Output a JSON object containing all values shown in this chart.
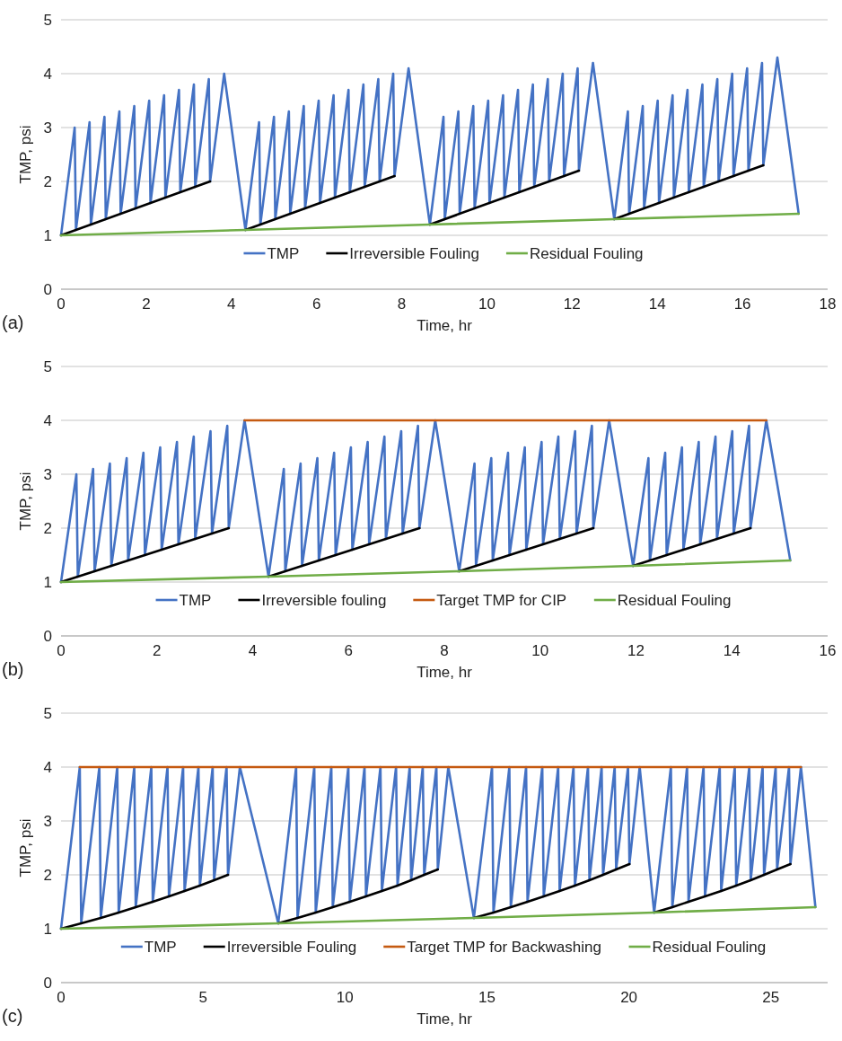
{
  "chart_data": [
    {
      "type": "line",
      "xlabel": "Time, hr",
      "ylabel": "TMP, psi",
      "annotations": [
        "(a)"
      ],
      "xlim": [
        0,
        18
      ],
      "xticks": [
        0,
        2,
        4,
        6,
        8,
        10,
        12,
        14,
        16,
        18
      ],
      "ylim": [
        0,
        5
      ],
      "yticks": [
        0,
        1,
        2,
        3,
        4,
        5
      ],
      "grid": "y",
      "legend": "bottom",
      "marker": "none",
      "line_style": "solid",
      "series": [
        {
          "name": "TMP",
          "color": "#4472c4",
          "x": [
            0,
            0.32,
            0.35,
            0.67,
            0.7,
            1.02,
            1.05,
            1.37,
            1.4,
            1.72,
            1.75,
            2.07,
            2.1,
            2.42,
            2.45,
            2.77,
            2.8,
            3.12,
            3.15,
            3.47,
            3.5,
            3.83,
            4.33,
            4.65,
            4.68,
            5.0,
            5.03,
            5.35,
            5.38,
            5.7,
            5.73,
            6.05,
            6.08,
            6.4,
            6.43,
            6.75,
            6.78,
            7.1,
            7.13,
            7.45,
            7.48,
            7.8,
            7.83,
            8.16,
            8.66,
            8.98,
            9.01,
            9.33,
            9.36,
            9.68,
            9.71,
            10.03,
            10.06,
            10.38,
            10.41,
            10.73,
            10.76,
            11.08,
            11.11,
            11.43,
            11.46,
            11.78,
            11.81,
            12.13,
            12.16,
            12.49,
            12.99,
            13.31,
            13.34,
            13.66,
            13.69,
            14.01,
            14.04,
            14.36,
            14.39,
            14.71,
            14.74,
            15.06,
            15.09,
            15.41,
            15.44,
            15.76,
            15.79,
            16.11,
            16.14,
            16.46,
            16.49,
            16.82,
            17.32
          ],
          "values": [
            1,
            3.0,
            1.1,
            3.1,
            1.2,
            3.2,
            1.3,
            3.3,
            1.4,
            3.4,
            1.5,
            3.5,
            1.6,
            3.6,
            1.7,
            3.7,
            1.8,
            3.8,
            1.9,
            3.9,
            2.0,
            4.0,
            1.1,
            3.1,
            1.2,
            3.2,
            1.3,
            3.3,
            1.4,
            3.4,
            1.5,
            3.5,
            1.6,
            3.6,
            1.7,
            3.7,
            1.8,
            3.8,
            1.9,
            3.9,
            2.0,
            4.0,
            2.1,
            4.1,
            1.2,
            3.2,
            1.3,
            3.3,
            1.4,
            3.4,
            1.5,
            3.5,
            1.6,
            3.6,
            1.7,
            3.7,
            1.8,
            3.8,
            1.9,
            3.9,
            2.0,
            4.0,
            2.1,
            4.1,
            2.2,
            4.2,
            1.3,
            3.3,
            1.4,
            3.4,
            1.5,
            3.5,
            1.6,
            3.6,
            1.7,
            3.7,
            1.8,
            3.8,
            1.9,
            3.9,
            2.0,
            4.0,
            2.1,
            4.1,
            2.2,
            4.2,
            2.3,
            4.3,
            1.4
          ]
        },
        {
          "name": "Irreversible Fouling",
          "color": "#000000",
          "x": [
            0,
            3.5,
            3.9,
            4.33,
            7.83,
            8.2,
            8.66,
            12.16,
            12.5,
            12.99,
            16.49
          ],
          "values": [
            1,
            2.0,
            null,
            1.1,
            2.1,
            null,
            1.2,
            2.2,
            null,
            1.3,
            2.3
          ]
        },
        {
          "name": "Residual Fouling",
          "color": "#70ad47",
          "x": [
            0,
            4.33,
            8.66,
            12.99,
            17.32
          ],
          "values": [
            1,
            1.1,
            1.2,
            1.3,
            1.4
          ]
        }
      ]
    },
    {
      "type": "line",
      "xlabel": "Time, hr",
      "ylabel": "TMP, psi",
      "annotations": [
        "(b)"
      ],
      "xlim": [
        0,
        16
      ],
      "xticks": [
        0,
        2,
        4,
        6,
        8,
        10,
        12,
        14,
        16
      ],
      "ylim": [
        0,
        5
      ],
      "yticks": [
        0,
        1,
        2,
        3,
        4,
        5
      ],
      "grid": "y",
      "legend": "bottom",
      "marker": "none",
      "line_style": "solid",
      "series": [
        {
          "name": "TMP",
          "color": "#4472c4",
          "x": [
            0,
            0.32,
            0.35,
            0.67,
            0.7,
            1.02,
            1.05,
            1.37,
            1.4,
            1.72,
            1.75,
            2.07,
            2.1,
            2.42,
            2.45,
            2.77,
            2.8,
            3.12,
            3.15,
            3.47,
            3.5,
            3.83,
            4.33,
            4.65,
            4.68,
            5.0,
            5.03,
            5.35,
            5.38,
            5.7,
            5.73,
            6.05,
            6.08,
            6.4,
            6.43,
            6.75,
            6.78,
            7.1,
            7.13,
            7.45,
            7.48,
            7.81,
            8.31,
            8.63,
            8.66,
            8.98,
            9.01,
            9.33,
            9.36,
            9.68,
            9.71,
            10.03,
            10.06,
            10.38,
            10.41,
            10.73,
            10.76,
            11.08,
            11.11,
            11.44,
            11.94,
            12.26,
            12.29,
            12.61,
            12.64,
            12.96,
            12.99,
            13.31,
            13.34,
            13.66,
            13.69,
            14.01,
            14.04,
            14.36,
            14.39,
            14.72,
            15.22
          ],
          "values": [
            1,
            3.0,
            1.1,
            3.1,
            1.2,
            3.2,
            1.3,
            3.3,
            1.4,
            3.4,
            1.5,
            3.5,
            1.6,
            3.6,
            1.7,
            3.7,
            1.8,
            3.8,
            1.9,
            3.9,
            2.0,
            4.0,
            1.1,
            3.1,
            1.2,
            3.2,
            1.3,
            3.3,
            1.4,
            3.4,
            1.5,
            3.5,
            1.6,
            3.6,
            1.7,
            3.7,
            1.8,
            3.8,
            1.9,
            3.9,
            2.0,
            4.0,
            1.2,
            3.2,
            1.3,
            3.3,
            1.4,
            3.4,
            1.5,
            3.5,
            1.6,
            3.6,
            1.7,
            3.7,
            1.8,
            3.8,
            1.9,
            3.9,
            2.0,
            4.0,
            1.3,
            3.3,
            1.4,
            3.4,
            1.5,
            3.5,
            1.6,
            3.6,
            1.7,
            3.7,
            1.8,
            3.8,
            1.9,
            3.9,
            2.0,
            4.0,
            1.4
          ]
        },
        {
          "name": "Irreversible fouling",
          "color": "#000000",
          "x": [
            0,
            3.5,
            3.9,
            4.33,
            7.48,
            7.9,
            8.31,
            11.11,
            11.5,
            11.94,
            14.39
          ],
          "values": [
            1,
            2.0,
            null,
            1.1,
            2.0,
            null,
            1.2,
            2.0,
            null,
            1.3,
            2.0
          ]
        },
        {
          "name": "Target TMP for CIP",
          "color": "#c55a11",
          "x": [
            3.83,
            14.72
          ],
          "values": [
            4,
            4
          ]
        },
        {
          "name": "Residual Fouling",
          "color": "#70ad47",
          "x": [
            0,
            4.33,
            8.31,
            11.94,
            15.22
          ],
          "values": [
            1,
            1.1,
            1.2,
            1.3,
            1.4
          ]
        }
      ]
    },
    {
      "type": "line",
      "xlabel": "Time, hr",
      "ylabel": "TMP, psi",
      "annotations": [
        "(c)"
      ],
      "xlim": [
        0,
        27
      ],
      "xticks": [
        0,
        5,
        10,
        15,
        20,
        25
      ],
      "ylim": [
        0,
        5
      ],
      "yticks": [
        0,
        1,
        2,
        3,
        4,
        5
      ],
      "grid": "y",
      "legend": "bottom",
      "marker": "none",
      "line_style": "solid",
      "series": [
        {
          "name": "TMP",
          "color": "#4472c4",
          "x": [
            0,
            0.66,
            0.71,
            1.35,
            1.4,
            1.98,
            2.03,
            2.58,
            2.63,
            3.18,
            3.23,
            3.75,
            3.8,
            4.3,
            4.35,
            4.84,
            4.89,
            5.34,
            5.39,
            5.83,
            5.88,
            6.3,
            7.65,
            8.28,
            8.33,
            8.92,
            8.97,
            9.52,
            9.57,
            10.12,
            10.17,
            10.69,
            10.74,
            11.25,
            11.3,
            11.8,
            11.85,
            12.28,
            12.33,
            12.74,
            12.79,
            13.22,
            13.27,
            13.64,
            14.54,
            15.18,
            15.23,
            15.79,
            15.84,
            16.38,
            16.43,
            16.95,
            17.0,
            17.51,
            17.56,
            18.05,
            18.1,
            18.56,
            18.61,
            19.04,
            19.09,
            19.5,
            19.55,
            19.97,
            20.02,
            20.38,
            20.89,
            21.48,
            21.53,
            22.05,
            22.1,
            22.63,
            22.68,
            23.2,
            23.25,
            23.73,
            23.78,
            24.24,
            24.29,
            24.71,
            24.76,
            25.17,
            25.22,
            25.64,
            25.69,
            26.06,
            26.57
          ],
          "values": [
            1,
            4,
            1.1,
            4,
            1.2,
            4,
            1.3,
            4,
            1.4,
            4,
            1.5,
            4,
            1.6,
            4,
            1.7,
            4,
            1.8,
            4,
            1.9,
            4,
            2.0,
            4,
            1.1,
            4,
            1.2,
            4,
            1.3,
            4,
            1.4,
            4,
            1.5,
            4,
            1.6,
            4,
            1.7,
            4,
            1.8,
            4,
            1.9,
            4,
            2.0,
            4,
            2.1,
            4,
            1.2,
            4,
            1.3,
            4,
            1.4,
            4,
            1.5,
            4,
            1.6,
            4,
            1.7,
            4,
            1.8,
            4,
            1.9,
            4,
            2.0,
            4,
            2.1,
            4,
            2.2,
            4,
            1.3,
            4,
            1.4,
            4,
            1.5,
            4,
            1.6,
            4,
            1.7,
            4,
            1.8,
            4,
            1.9,
            4,
            2.0,
            4,
            2.1,
            4,
            2.2,
            4,
            1.4
          ]
        },
        {
          "name": "Irreversible Fouling",
          "color": "#000000",
          "x": [
            0,
            0.71,
            1.4,
            2.03,
            2.63,
            3.23,
            3.8,
            4.35,
            4.89,
            5.39,
            5.88,
            6.5,
            7.65,
            8.33,
            8.97,
            9.57,
            10.17,
            10.74,
            11.3,
            11.85,
            12.33,
            12.79,
            13.27,
            13.8,
            14.54,
            15.23,
            15.84,
            16.43,
            17.0,
            17.56,
            18.1,
            18.61,
            19.09,
            19.55,
            20.02,
            20.5,
            20.89,
            21.53,
            22.1,
            22.68,
            23.25,
            23.78,
            24.29,
            24.76,
            25.22,
            25.69
          ],
          "values": [
            1,
            1.1,
            1.2,
            1.3,
            1.4,
            1.5,
            1.6,
            1.7,
            1.8,
            1.9,
            2.0,
            null,
            1.1,
            1.2,
            1.3,
            1.4,
            1.5,
            1.6,
            1.7,
            1.8,
            1.9,
            2.0,
            2.1,
            null,
            1.2,
            1.3,
            1.4,
            1.5,
            1.6,
            1.7,
            1.8,
            1.9,
            2.0,
            2.1,
            2.2,
            null,
            1.3,
            1.4,
            1.5,
            1.6,
            1.7,
            1.8,
            1.9,
            2.0,
            2.1,
            2.2
          ]
        },
        {
          "name": "Target TMP for Backwashing",
          "color": "#c55a11",
          "x": [
            0.66,
            26.06
          ],
          "values": [
            4,
            4
          ]
        },
        {
          "name": "Residual Fouling",
          "color": "#70ad47",
          "x": [
            0,
            7.65,
            14.54,
            20.89,
            26.57
          ],
          "values": [
            1,
            1.1,
            1.2,
            1.3,
            1.4
          ]
        }
      ]
    }
  ]
}
